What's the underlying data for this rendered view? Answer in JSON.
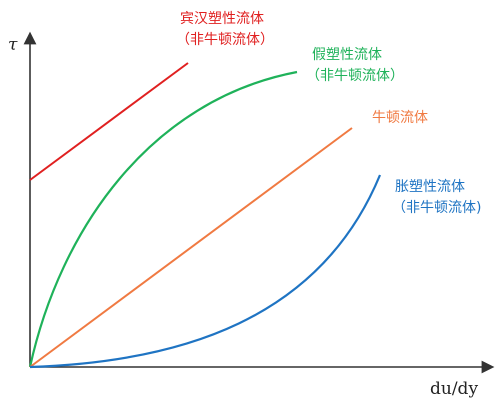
{
  "axes": {
    "y_label": "τ",
    "x_label": "du/dy",
    "color": "#333333"
  },
  "curves": [
    {
      "id": "bingham",
      "kind": "bingham plastic",
      "color": "#e02020",
      "label_line1": "宾汉塑性流体",
      "label_line2": "（非牛顿流体）"
    },
    {
      "id": "pseudoplastic",
      "kind": "pseudoplastic",
      "color": "#1fb25a",
      "label_line1": "假塑性流体",
      "label_line2": "（非牛顿流体）"
    },
    {
      "id": "newtonian",
      "kind": "newtonian",
      "color": "#f07a42",
      "label_line1": "牛顿流体",
      "label_line2": ""
    },
    {
      "id": "dilatant",
      "kind": "dilatant",
      "color": "#1f74c3",
      "label_line1": "胀塑性流体",
      "label_line2": "（非牛顿流体)"
    }
  ]
}
